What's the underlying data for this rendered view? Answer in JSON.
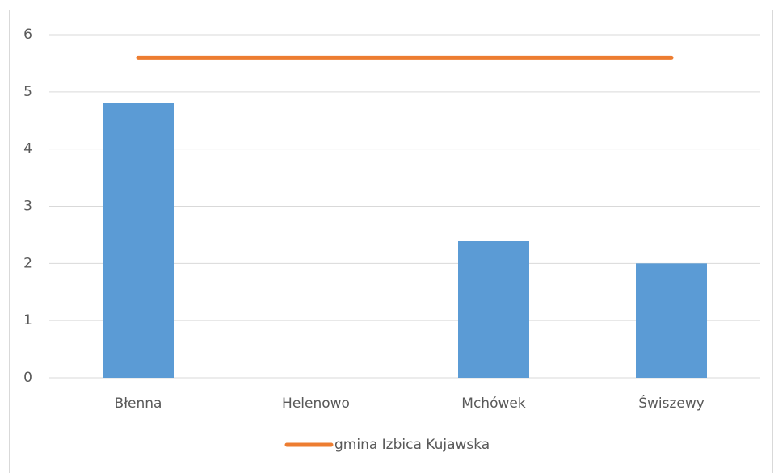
{
  "chart_data": {
    "type": "bar",
    "categories": [
      "Błenna",
      "Helenowo",
      "Mchówek",
      "Świszewy"
    ],
    "series": [
      {
        "type": "bar",
        "color": "#5b9bd5",
        "values": [
          4.8,
          0,
          2.4,
          2
        ]
      },
      {
        "type": "line",
        "name": "gmina Izbica Kujawska",
        "color": "#ed7d31",
        "values": [
          5.6,
          5.6,
          5.6,
          5.6
        ]
      }
    ],
    "ylim": [
      0,
      6
    ],
    "yticks": [
      0,
      1,
      2,
      3,
      4,
      5,
      6
    ],
    "grid": true,
    "legend": "bottom"
  }
}
